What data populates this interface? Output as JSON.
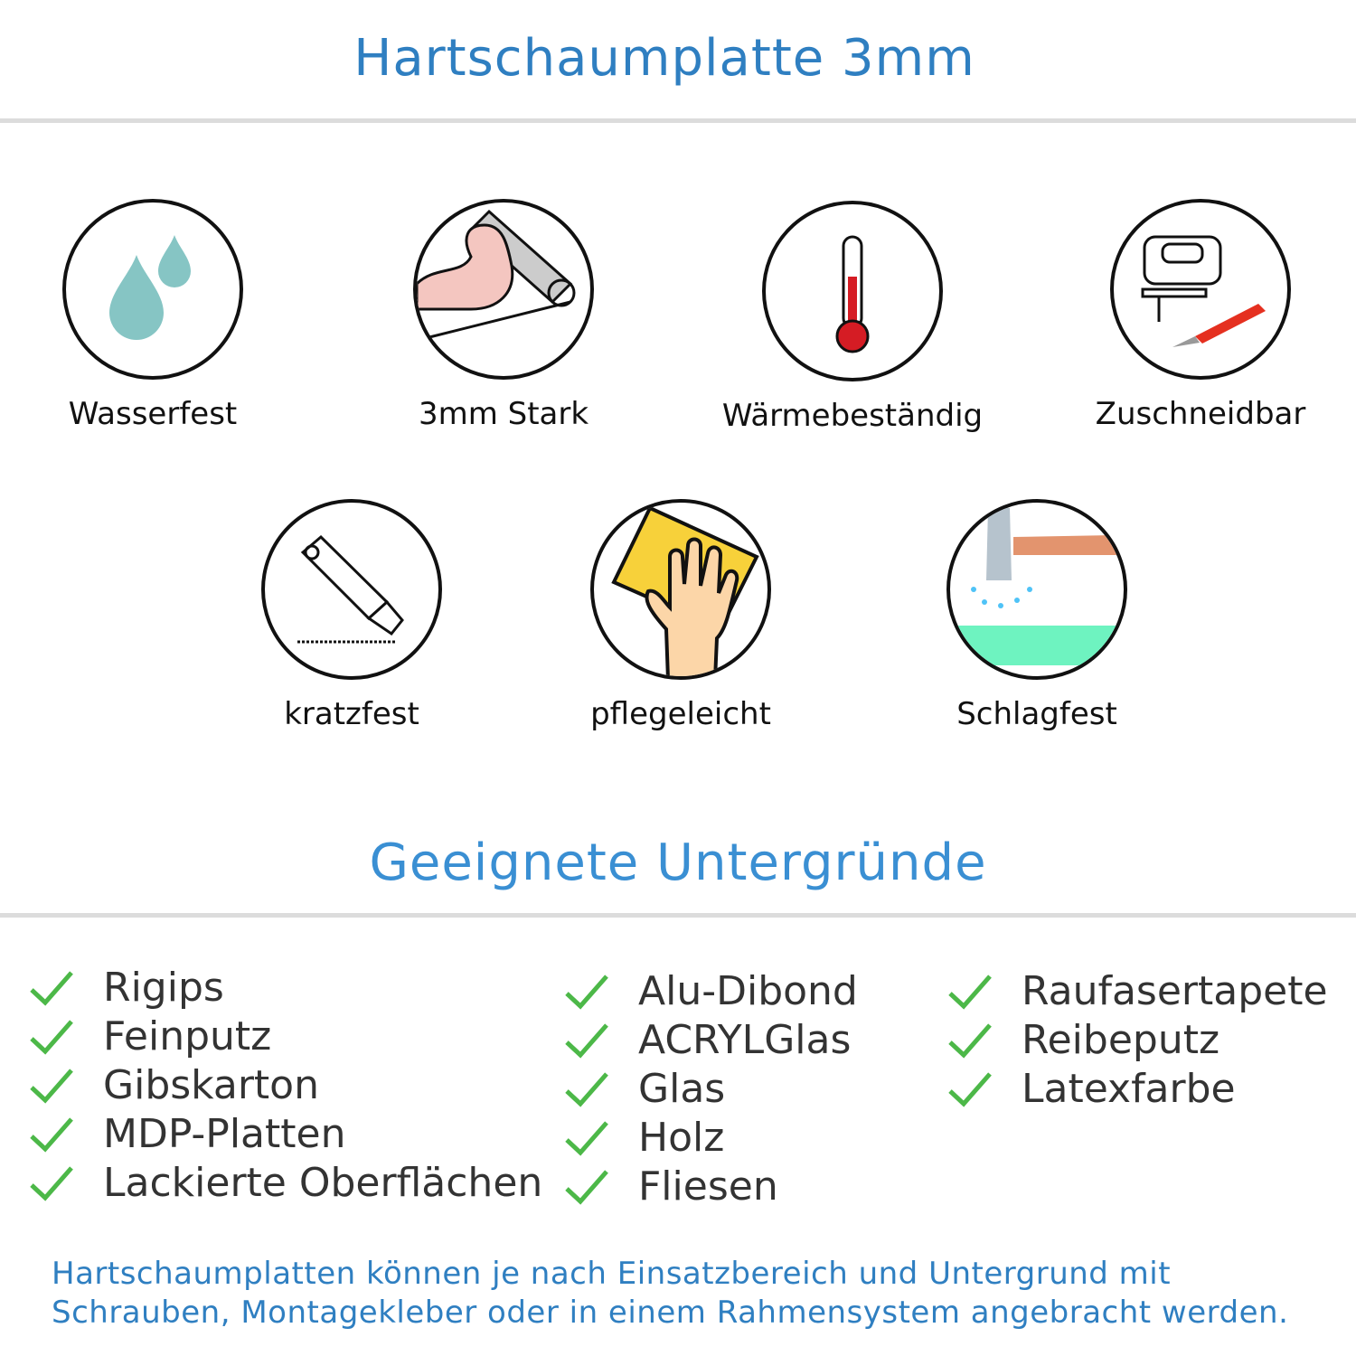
{
  "header": {
    "title": "Hartschaumplatte 3mm"
  },
  "features": [
    {
      "label": "Wasserfest",
      "icon": "water-drops-icon"
    },
    {
      "label": "3mm Stark",
      "icon": "flexed-arm-icon"
    },
    {
      "label": "Wärmebeständig",
      "icon": "thermometer-icon"
    },
    {
      "label": "Zuschneidbar",
      "icon": "jigsaw-knife-icon"
    },
    {
      "label": "kratzfest",
      "icon": "cutter-knife-icon"
    },
    {
      "label": "pflegeleicht",
      "icon": "hand-sponge-icon"
    },
    {
      "label": "Schlagfest",
      "icon": "hammer-icon"
    }
  ],
  "surfaces": {
    "title": "Geeignete Untergründe",
    "columns": [
      [
        "Rigips",
        "Feinputz",
        "Gibskarton",
        "MDP-Platten",
        "Lackierte Oberflächen"
      ],
      [
        "Alu-Dibond",
        "ACRYLGlas",
        "Glas",
        "Holz",
        "Fliesen"
      ],
      [
        "Raufasertapete",
        "Reibeputz",
        "Latexfarbe"
      ]
    ],
    "check_color": "#4cb848"
  },
  "footer": {
    "line1": "Hartschaumplatten können je nach Einsatzbereich und Untergrund mit",
    "line2": "Schrauben, Montagekleber oder in einem Rahmensystem angebracht werden."
  },
  "colors": {
    "accent": "#2f7fc1",
    "divider": "#dcdcdc"
  }
}
